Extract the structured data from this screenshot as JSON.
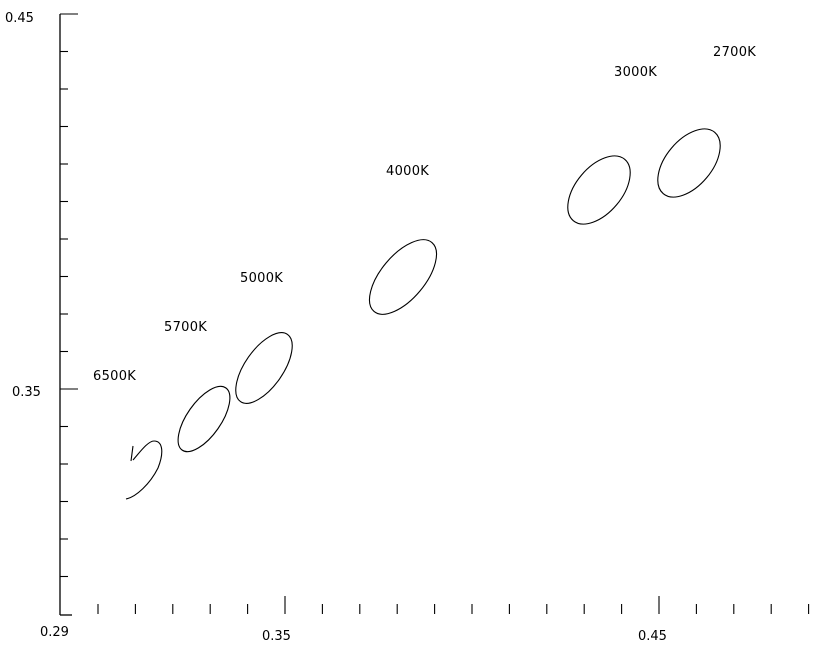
{
  "chart_data": {
    "type": "scatter",
    "title": "",
    "xlabel": "",
    "ylabel": "",
    "xlim": [
      0.29,
      0.48
    ],
    "ylim": [
      0.29,
      0.45
    ],
    "x_major_ticks": [
      0.35,
      0.45
    ],
    "x_tick_labels": [
      "0.29",
      "0.35",
      "0.45"
    ],
    "y_tick_labels": [
      "0.35",
      "0.45"
    ],
    "y_major_ticks": [
      0.35,
      0.45
    ],
    "grid": false,
    "series": [
      {
        "label": "6500K",
        "center": [
          0.3123,
          0.3282
        ],
        "partial": true
      },
      {
        "label": "5700K",
        "center": [
          0.3287,
          0.3417
        ]
      },
      {
        "label": "5000K",
        "center": [
          0.3447,
          0.3553
        ]
      },
      {
        "label": "4000K",
        "center": [
          0.3818,
          0.3797
        ]
      },
      {
        "label": "3000K",
        "center": [
          0.4338,
          0.403
        ]
      },
      {
        "label": "2700K",
        "center": [
          0.4578,
          0.4101
        ]
      }
    ]
  }
}
